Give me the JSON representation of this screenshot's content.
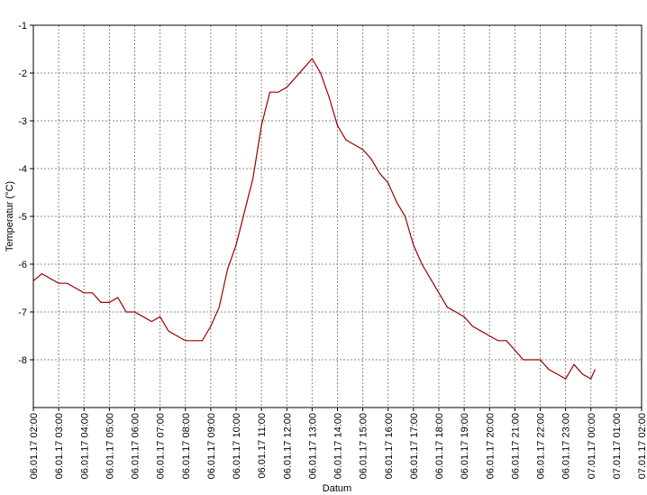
{
  "chart_data": {
    "type": "line",
    "y_label": "Temperatur (°C)",
    "x_label": "Datum",
    "x": [
      "06.01.17 02:00",
      "06.01.17 02:20",
      "06.01.17 02:40",
      "06.01.17 03:00",
      "06.01.17 03:20",
      "06.01.17 03:40",
      "06.01.17 04:00",
      "06.01.17 04:20",
      "06.01.17 04:40",
      "06.01.17 05:00",
      "06.01.17 05:20",
      "06.01.17 05:40",
      "06.01.17 06:00",
      "06.01.17 06:20",
      "06.01.17 06:40",
      "06.01.17 07:00",
      "06.01.17 07:20",
      "06.01.17 07:40",
      "06.01.17 08:00",
      "06.01.17 08:20",
      "06.01.17 08:40",
      "06.01.17 09:00",
      "06.01.17 09:20",
      "06.01.17 09:40",
      "06.01.17 10:00",
      "06.01.17 10:20",
      "06.01.17 10:40",
      "06.01.17 11:00",
      "06.01.17 11:20",
      "06.01.17 11:40",
      "06.01.17 12:00",
      "06.01.17 12:20",
      "06.01.17 12:40",
      "06.01.17 13:00",
      "06.01.17 13:20",
      "06.01.17 13:40",
      "06.01.17 14:00",
      "06.01.17 14:20",
      "06.01.17 14:40",
      "06.01.17 15:00",
      "06.01.17 15:20",
      "06.01.17 15:40",
      "06.01.17 16:00",
      "06.01.17 16:20",
      "06.01.17 16:40",
      "06.01.17 17:00",
      "06.01.17 17:20",
      "06.01.17 17:40",
      "06.01.17 18:00",
      "06.01.17 18:20",
      "06.01.17 18:40",
      "06.01.17 19:00",
      "06.01.17 19:20",
      "06.01.17 19:40",
      "06.01.17 20:00",
      "06.01.17 20:20",
      "06.01.17 20:40",
      "06.01.17 21:00",
      "06.01.17 21:20",
      "06.01.17 21:40",
      "06.01.17 22:00",
      "06.01.17 22:20",
      "06.01.17 22:40",
      "06.01.17 23:00",
      "06.01.17 23:20",
      "06.01.17 23:40",
      "07.01.17 00:00",
      "07.01.17 00:10"
    ],
    "series": [
      {
        "color": "#990000",
        "values": [
          -6.35,
          -6.2,
          -6.3,
          -6.4,
          -6.4,
          -6.5,
          -6.6,
          -6.6,
          -6.8,
          -6.8,
          -6.7,
          -7.0,
          -7.0,
          -7.1,
          -7.2,
          -7.1,
          -7.4,
          -7.5,
          -7.6,
          -7.6,
          -7.6,
          -7.3,
          -6.9,
          -6.1,
          -5.6,
          -4.9,
          -4.2,
          -3.1,
          -2.4,
          -2.4,
          -2.3,
          -2.1,
          -1.9,
          -1.7,
          -2.0,
          -2.5,
          -3.1,
          -3.4,
          -3.5,
          -3.6,
          -3.8,
          -4.1,
          -4.3,
          -4.7,
          -5.0,
          -5.6,
          -6.0,
          -6.3,
          -6.6,
          -6.9,
          -7.0,
          -7.1,
          -7.3,
          -7.4,
          -7.5,
          -7.6,
          -7.6,
          -7.8,
          -8.0,
          -8.0,
          -8.0,
          -8.2,
          -8.3,
          -8.4,
          -8.1,
          -8.3,
          -8.4,
          -8.2
        ]
      }
    ],
    "xlim": [
      "06.01.17 02:00",
      "07.01.17 02:00"
    ],
    "xticks": [
      "06.01.17 02:00",
      "06.01.17 03:00",
      "06.01.17 04:00",
      "06.01.17 05:00",
      "06.01.17 06:00",
      "06.01.17 07:00",
      "06.01.17 08:00",
      "06.01.17 09:00",
      "06.01.17 10:00",
      "06.01.17 11:00",
      "06.01.17 12:00",
      "06.01.17 13:00",
      "06.01.17 14:00",
      "06.01.17 15:00",
      "06.01.17 16:00",
      "06.01.17 17:00",
      "06.01.17 18:00",
      "06.01.17 19:00",
      "06.01.17 20:00",
      "06.01.17 21:00",
      "06.01.17 22:00",
      "06.01.17 23:00",
      "07.01.17 00:00",
      "07.01.17 01:00",
      "07.01.17 02:00"
    ],
    "ylim": [
      -9,
      -1
    ],
    "yticks": [
      -8,
      -7,
      -6,
      -5,
      -4,
      -3,
      -2,
      -1
    ],
    "grid": true
  }
}
